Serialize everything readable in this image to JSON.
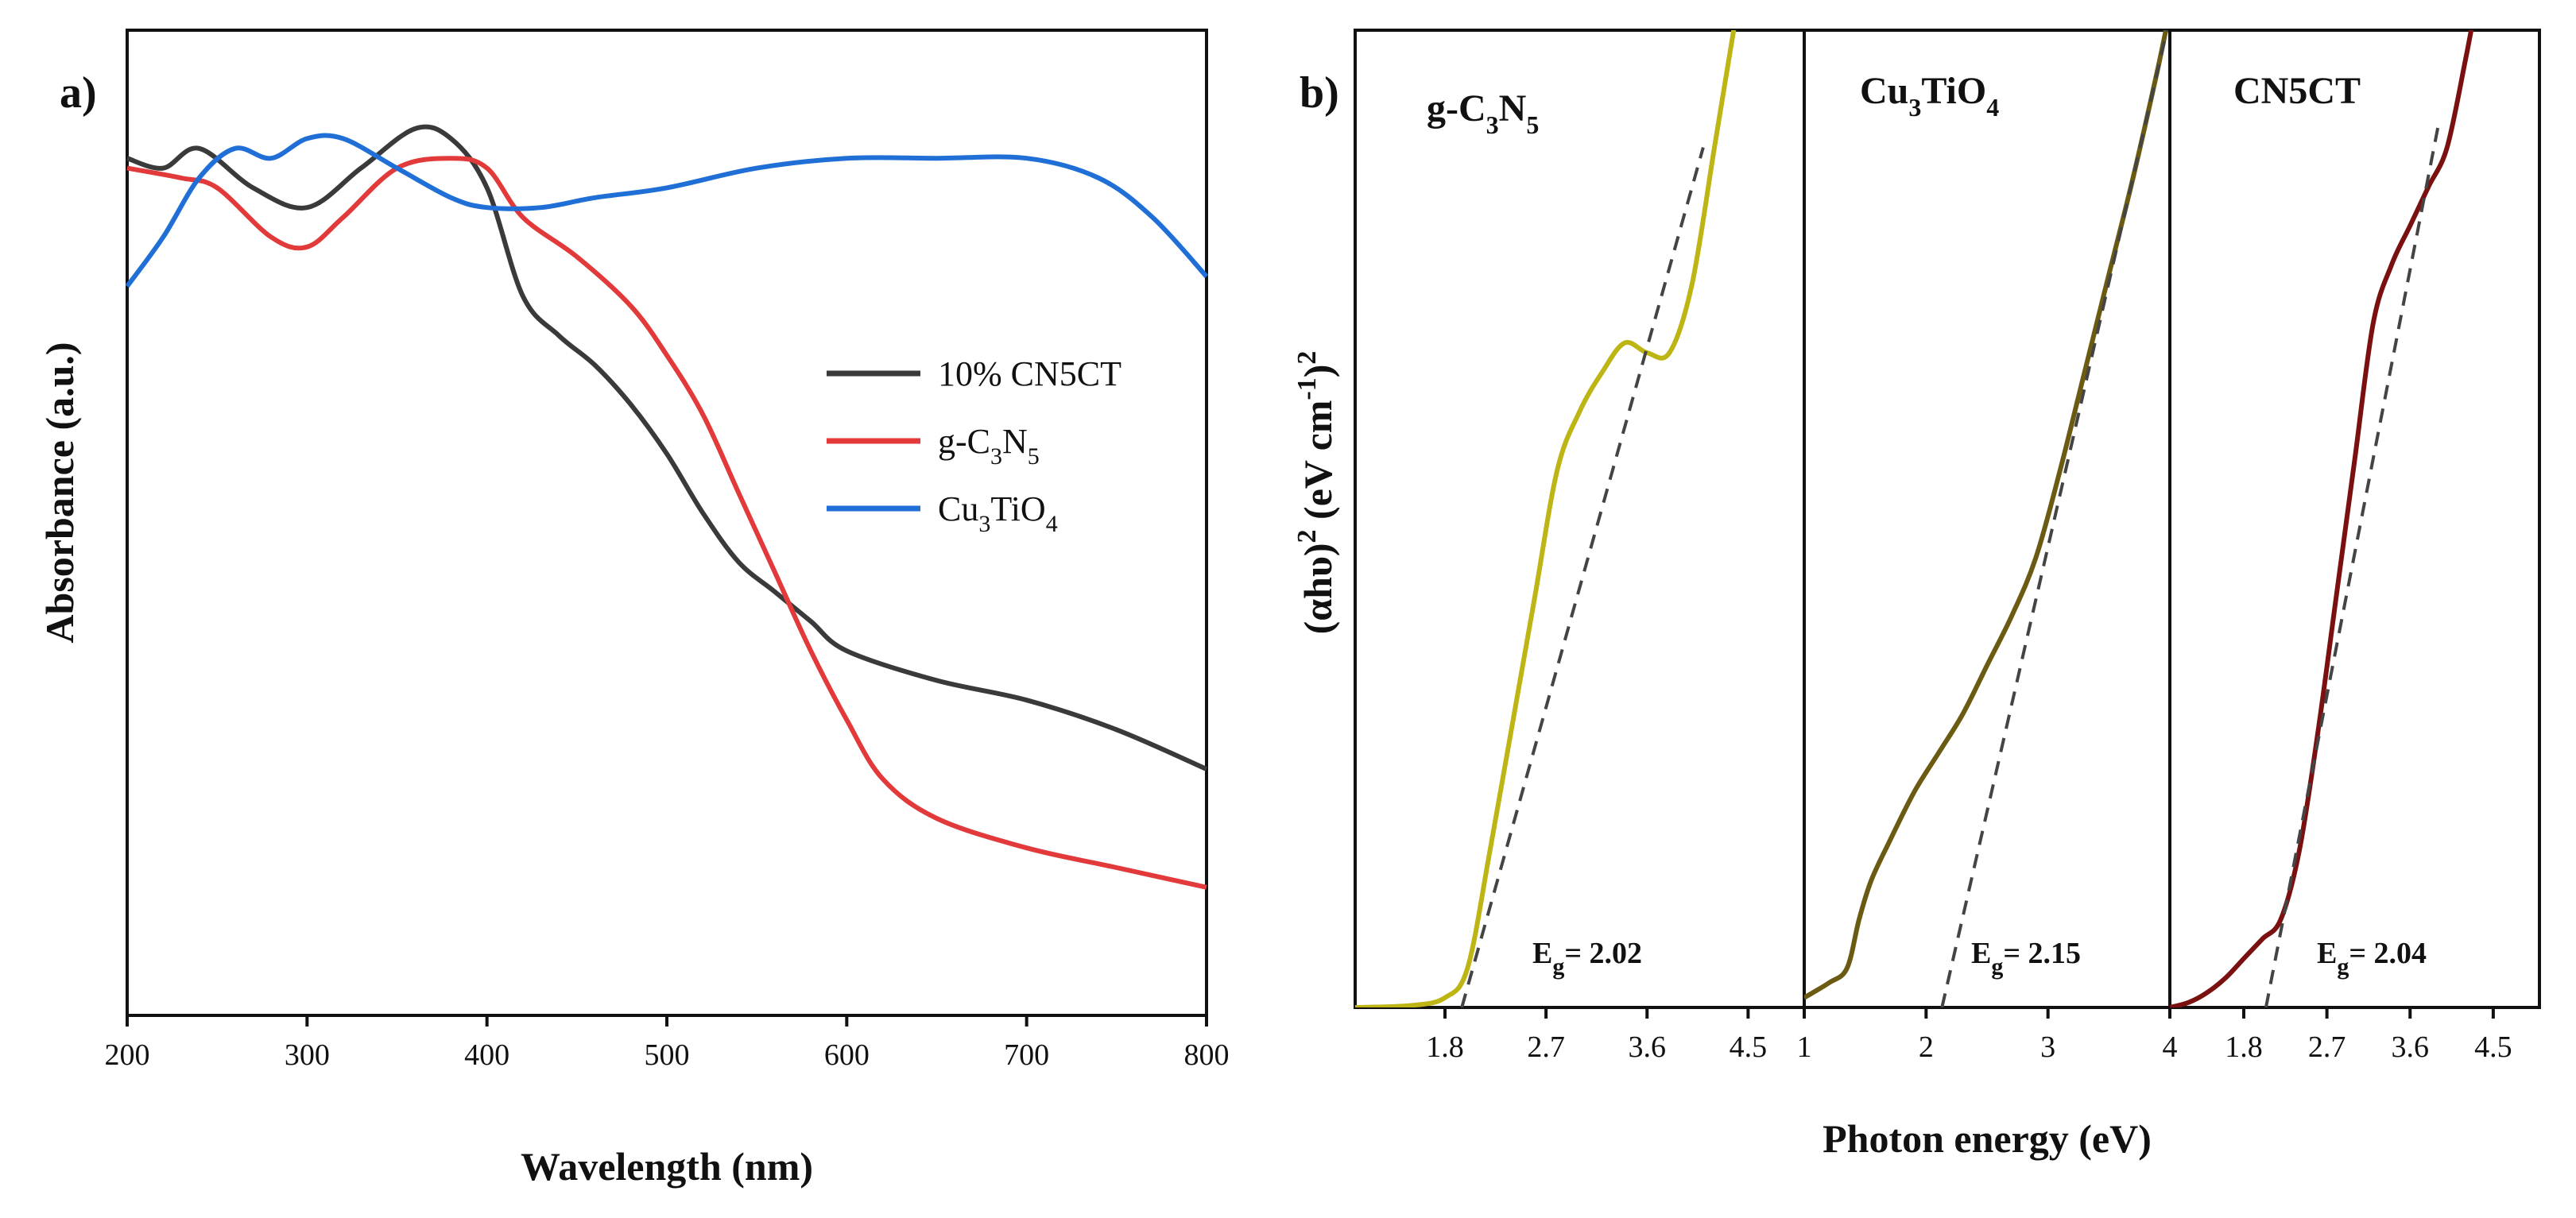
{
  "chart_data": [
    {
      "panel": "a)",
      "type": "line",
      "title": "",
      "xlabel": "Wavelength (nm)",
      "ylabel": "Absorbance (a.u.)",
      "xlim": [
        200,
        800
      ],
      "ylim": [
        0,
        1
      ],
      "x_ticks": [
        "200",
        "300",
        "400",
        "500",
        "600",
        "700",
        "800"
      ],
      "legend_position": "center-right",
      "series": [
        {
          "name": "10% CN5CT",
          "color": "#3a3a3a",
          "legend_text": "10% CN5CT",
          "x": [
            200,
            220,
            240,
            270,
            300,
            330,
            360,
            380,
            400,
            420,
            440,
            460,
            480,
            500,
            520,
            540,
            560,
            580,
            600,
            650,
            700,
            750,
            800
          ],
          "y": [
            0.87,
            0.86,
            0.88,
            0.84,
            0.82,
            0.86,
            0.9,
            0.89,
            0.84,
            0.73,
            0.69,
            0.66,
            0.62,
            0.57,
            0.51,
            0.46,
            0.43,
            0.4,
            0.37,
            0.34,
            0.32,
            0.29,
            0.25
          ]
        },
        {
          "name": "g-C3N5",
          "color": "#e23a3a",
          "legend_text": "g-C",
          "legend_sub1": "3",
          "legend_mid": "N",
          "legend_sub2": "5",
          "x": [
            200,
            230,
            250,
            280,
            300,
            320,
            350,
            380,
            400,
            420,
            450,
            480,
            500,
            520,
            540,
            560,
            580,
            600,
            620,
            650,
            700,
            750,
            800
          ],
          "y": [
            0.86,
            0.85,
            0.84,
            0.79,
            0.78,
            0.81,
            0.86,
            0.87,
            0.86,
            0.81,
            0.77,
            0.72,
            0.67,
            0.61,
            0.53,
            0.45,
            0.37,
            0.3,
            0.24,
            0.2,
            0.17,
            0.15,
            0.13
          ]
        },
        {
          "name": "Cu3TiO4",
          "color": "#1f6fd6",
          "legend_text": "Cu",
          "legend_sub1": "3",
          "legend_mid": "TiO",
          "legend_sub2": "4",
          "x": [
            200,
            220,
            240,
            260,
            280,
            300,
            320,
            350,
            380,
            400,
            430,
            460,
            500,
            550,
            600,
            650,
            700,
            740,
            770,
            800
          ],
          "y": [
            0.74,
            0.79,
            0.85,
            0.88,
            0.87,
            0.89,
            0.89,
            0.86,
            0.83,
            0.82,
            0.82,
            0.83,
            0.84,
            0.86,
            0.87,
            0.87,
            0.87,
            0.85,
            0.81,
            0.75
          ]
        }
      ]
    },
    {
      "panel": "b)",
      "type": "line",
      "title": "",
      "xlabel": "Photon energy (eV)",
      "ylabel_parts": [
        "(αhυ)",
        "2",
        " (eV cm",
        "-1",
        ")",
        "2"
      ],
      "subplots": [
        {
          "label_main": "g-C",
          "label_sub1": "3",
          "label_mid": "N",
          "label_sub2": "5",
          "color": "#bcb514",
          "xlim": [
            1.0,
            5.0
          ],
          "x_ticks": [
            "1.8",
            "2.7",
            "3.6",
            "4.5"
          ],
          "x_tick_values": [
            1.8,
            2.7,
            3.6,
            4.5
          ],
          "eg_prefix": "E",
          "eg_sub": "g",
          "eg_value": "= 2.02",
          "x": [
            1.0,
            1.5,
            1.8,
            2.0,
            2.2,
            2.4,
            2.6,
            2.8,
            3.0,
            3.2,
            3.4,
            3.6,
            3.8,
            4.0,
            4.2,
            4.3,
            4.4
          ],
          "y": [
            0.0,
            0.002,
            0.01,
            0.04,
            0.16,
            0.29,
            0.42,
            0.55,
            0.61,
            0.65,
            0.68,
            0.67,
            0.67,
            0.74,
            0.88,
            0.95,
            1.02
          ],
          "fit": [
            [
              1.95,
              0.0
            ],
            [
              4.1,
              0.88
            ]
          ]
        },
        {
          "label_main": "Cu",
          "label_sub1": "3",
          "label_mid": "TiO",
          "label_sub2": "4",
          "color": "#6b5a12",
          "xlim": [
            1.0,
            4.0
          ],
          "x_ticks": [
            "1",
            "2",
            "3",
            "4"
          ],
          "x_tick_values": [
            1,
            2,
            3,
            4
          ],
          "eg_prefix": "E",
          "eg_sub": "g",
          "eg_value": "= 2.15",
          "x": [
            1.0,
            1.2,
            1.35,
            1.45,
            1.55,
            1.7,
            1.9,
            2.1,
            2.3,
            2.5,
            2.7,
            2.9,
            3.1,
            3.3,
            3.5,
            3.7,
            3.9,
            4.0
          ],
          "y": [
            0.01,
            0.025,
            0.04,
            0.09,
            0.13,
            0.17,
            0.22,
            0.26,
            0.3,
            0.35,
            0.4,
            0.46,
            0.55,
            0.65,
            0.75,
            0.85,
            0.96,
            1.02
          ],
          "fit": [
            [
              2.13,
              0.0
            ],
            [
              4.05,
              1.04
            ]
          ]
        },
        {
          "label_main": "CN5CT",
          "color": "#7a1010",
          "xlim": [
            1.0,
            5.0
          ],
          "x_ticks": [
            "1.8",
            "2.7",
            "3.6",
            "4.5"
          ],
          "x_tick_values": [
            1.8,
            2.7,
            3.6,
            4.5
          ],
          "eg_prefix": "E",
          "eg_sub": "g",
          "eg_value": "= 2.04",
          "x": [
            1.0,
            1.2,
            1.4,
            1.6,
            1.8,
            2.0,
            2.2,
            2.4,
            2.6,
            2.8,
            3.0,
            3.2,
            3.4,
            3.6,
            3.8,
            4.0,
            4.2,
            4.3
          ],
          "y": [
            0.0,
            0.005,
            0.015,
            0.03,
            0.05,
            0.07,
            0.09,
            0.16,
            0.28,
            0.42,
            0.56,
            0.7,
            0.76,
            0.8,
            0.84,
            0.88,
            0.97,
            1.02
          ],
          "fit": [
            [
              2.04,
              0.0
            ],
            [
              3.9,
              0.9
            ]
          ]
        }
      ]
    }
  ]
}
